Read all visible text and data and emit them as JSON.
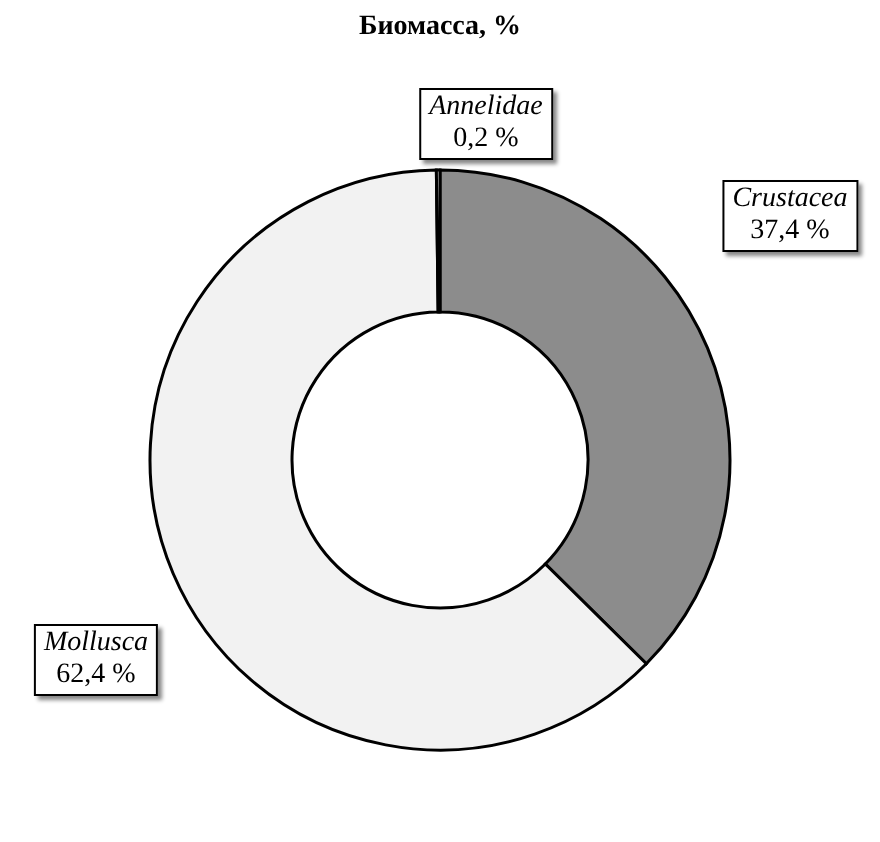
{
  "chart_data": {
    "type": "donut",
    "title": "Биомасса, %",
    "categories": [
      "Crustacea",
      "Mollusca",
      "Annelidae"
    ],
    "values": [
      37.4,
      62.4,
      0.2
    ],
    "colors": [
      "#8c8c8c",
      "#f2f2f2",
      "#d9d9d9"
    ],
    "value_labels": [
      "37,4 %",
      "62,4 %",
      "0,2 %"
    ]
  }
}
